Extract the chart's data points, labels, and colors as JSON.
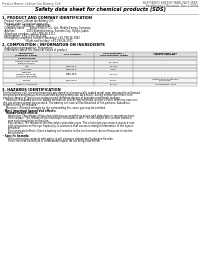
{
  "bg_color": "#ffffff",
  "header_top_left": "Product Name: Lithium Ion Battery Cell",
  "header_top_right_line1": "BLB/SANYO ENERGY MANUFACTURER",
  "header_top_right_line2": "Established / Revision: Dec.1.2006",
  "title": "Safety data sheet for chemical products (SDS)",
  "section1_title": "1. PRODUCT AND COMPANY IDENTIFICATION",
  "s1_items": [
    "· Product name: Lithium Ion Battery Cell",
    "· Product code: Cylindrical-type cell",
    "    (UR18650U, UR18650L, UR18650A)",
    "· Company name:      Sanyo Electric Co., Ltd., Mobile Energy Company",
    "· Address:               2001 Kamitakamatsu, Sumoto-City, Hyogo, Japan",
    "· Telephone number:   +81-(799)-26-4111",
    "· Fax number:  +81-(799)-26-4129",
    "· Emergency telephone number (Weekday) +81-799-26-3942",
    "                              (Night and holiday) +81-799-26-3101"
  ],
  "section2_title": "2. COMPOSITION / INFORMATION ON INGREDIENTS",
  "s2_intro": "· Substance or preparation: Preparation",
  "s2_sub": "· Information about the chemical nature of product",
  "table_headers": [
    "Component\n(Common name)",
    "CAS number",
    "Concentration /\nConcentration range",
    "Classification and\nhazard labeling"
  ],
  "table_col_headers2": [
    "Several name",
    "",
    "",
    ""
  ],
  "table_rows": [
    [
      "Lithium cobalt oxide\n(LiMn/Co/Ni/O4)",
      "-",
      "(30-40%)",
      "-"
    ],
    [
      "Iron",
      "7439-89-6",
      "15-25%",
      "-"
    ],
    [
      "Aluminum",
      "7429-90-5",
      "2-6%",
      "-"
    ],
    [
      "Graphite\n(Natural graphite)\n(Artificial graphite)",
      "7782-42-5\n7782-44-0",
      "10-20%",
      "-"
    ],
    [
      "Copper",
      "7440-50-8",
      "5-15%",
      "Sensitization of the skin\ngroup R42"
    ],
    [
      "Organic electrolyte",
      "-",
      "10-20%",
      "Inflammable liquid"
    ]
  ],
  "section3_title": "3. HAZARDS IDENTIFICATION",
  "s3_lines": [
    "For the battery cell, chemical materials are stored in a hermetically sealed metal case, designed to withstand",
    "temperatures and pressures encountered during normal use. As a result, during normal use, there is no",
    "physical danger of ignition or explosion and therefore danger of hazardous materials leakage.",
    "    However, if exposed to a fire, added mechanical shocks, decomposed, written electric wires my case use,",
    "the gas release cannot be operated. The battery cell case will be breached of fire-portions, hazardous",
    "materials may be released.",
    "    Moreover, if heated strongly by the surrounding fire, some gas may be emitted."
  ],
  "s3_bullet1": "· Most important hazard and effects:",
  "s3_h_health": "Human health effects:",
  "s3_health_lines": [
    "Inhalation: The release of the electrolyte has an anesthesia action and stimulates in respiratory tract.",
    "Skin contact: The release of the electrolyte stimulates a skin. The electrolyte skin contact causes a",
    "sore and stimulation on the skin.",
    "Eye contact: The release of the electrolyte stimulates eyes. The electrolyte eye contact causes a sore",
    "and stimulation on the eye. Especially, a substance that causes a strong inflammation of the eyes is",
    "contained."
  ],
  "s3_env_lines": [
    "Environmental effects: Since a battery cell remains in the environment, do not throw out it into the",
    "environment."
  ],
  "s3_bullet2": "· Specific hazards:",
  "s3_specific_lines": [
    "If the electrolyte contacts with water, it will generate detrimental hydrogen fluoride.",
    "Since the neat electrolyte is inflammable liquid, do not bring close to fire."
  ]
}
